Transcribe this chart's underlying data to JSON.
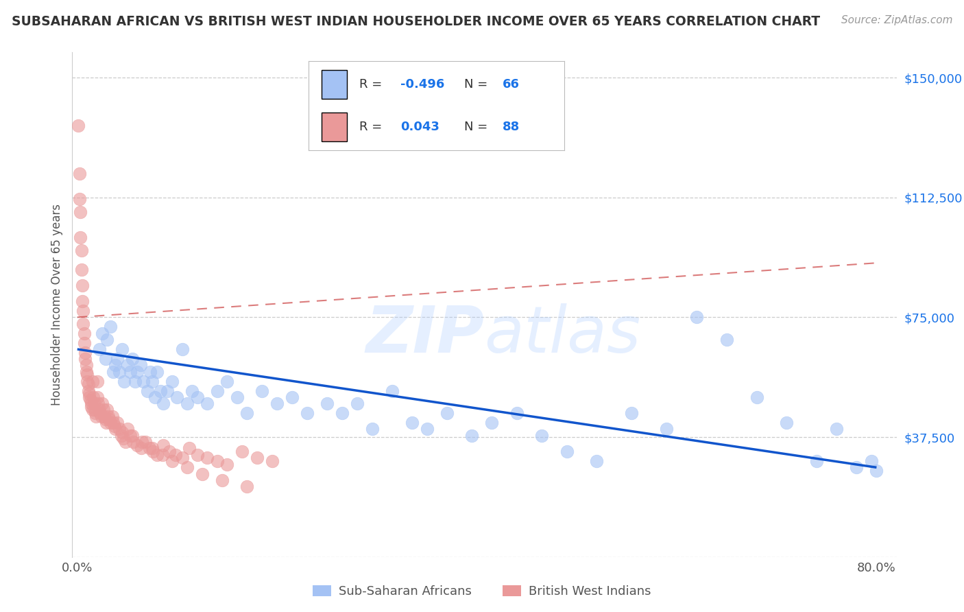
{
  "title": "SUBSAHARAN AFRICAN VS BRITISH WEST INDIAN HOUSEHOLDER INCOME OVER 65 YEARS CORRELATION CHART",
  "source": "Source: ZipAtlas.com",
  "ylabel": "Householder Income Over 65 years",
  "legend_label1": "Sub-Saharan Africans",
  "legend_label2": "British West Indians",
  "color_blue": "#a4c2f4",
  "color_pink": "#ea9999",
  "trendline_blue": "#1155cc",
  "trendline_pink": "#cc4444",
  "background": "#ffffff",
  "r1": "-0.496",
  "n1": "66",
  "r2": "0.043",
  "n2": "88",
  "blue_scatter_x": [
    0.022,
    0.025,
    0.028,
    0.03,
    0.033,
    0.036,
    0.038,
    0.04,
    0.042,
    0.045,
    0.047,
    0.05,
    0.053,
    0.055,
    0.058,
    0.06,
    0.063,
    0.066,
    0.07,
    0.073,
    0.075,
    0.078,
    0.08,
    0.083,
    0.086,
    0.09,
    0.095,
    0.1,
    0.105,
    0.11,
    0.115,
    0.12,
    0.13,
    0.14,
    0.15,
    0.16,
    0.17,
    0.185,
    0.2,
    0.215,
    0.23,
    0.25,
    0.265,
    0.28,
    0.295,
    0.315,
    0.335,
    0.35,
    0.37,
    0.395,
    0.415,
    0.44,
    0.465,
    0.49,
    0.52,
    0.555,
    0.59,
    0.62,
    0.65,
    0.68,
    0.71,
    0.74,
    0.76,
    0.78,
    0.795,
    0.8
  ],
  "blue_scatter_y": [
    65000,
    70000,
    62000,
    68000,
    72000,
    58000,
    60000,
    62000,
    58000,
    65000,
    55000,
    60000,
    58000,
    62000,
    55000,
    58000,
    60000,
    55000,
    52000,
    58000,
    55000,
    50000,
    58000,
    52000,
    48000,
    52000,
    55000,
    50000,
    65000,
    48000,
    52000,
    50000,
    48000,
    52000,
    55000,
    50000,
    45000,
    52000,
    48000,
    50000,
    45000,
    48000,
    45000,
    48000,
    40000,
    52000,
    42000,
    40000,
    45000,
    38000,
    42000,
    45000,
    38000,
    33000,
    30000,
    45000,
    40000,
    75000,
    68000,
    50000,
    42000,
    30000,
    40000,
    28000,
    30000,
    27000
  ],
  "pink_scatter_x": [
    0.001,
    0.002,
    0.002,
    0.003,
    0.003,
    0.004,
    0.004,
    0.005,
    0.005,
    0.006,
    0.006,
    0.007,
    0.007,
    0.008,
    0.008,
    0.009,
    0.009,
    0.01,
    0.01,
    0.011,
    0.011,
    0.012,
    0.012,
    0.013,
    0.014,
    0.014,
    0.015,
    0.015,
    0.016,
    0.017,
    0.017,
    0.018,
    0.019,
    0.02,
    0.02,
    0.021,
    0.022,
    0.023,
    0.024,
    0.025,
    0.026,
    0.027,
    0.028,
    0.029,
    0.03,
    0.031,
    0.032,
    0.033,
    0.035,
    0.036,
    0.037,
    0.038,
    0.04,
    0.042,
    0.044,
    0.046,
    0.048,
    0.05,
    0.053,
    0.056,
    0.06,
    0.064,
    0.068,
    0.072,
    0.076,
    0.08,
    0.086,
    0.092,
    0.098,
    0.105,
    0.112,
    0.12,
    0.13,
    0.14,
    0.15,
    0.165,
    0.18,
    0.195,
    0.045,
    0.055,
    0.065,
    0.075,
    0.085,
    0.095,
    0.11,
    0.125,
    0.145,
    0.17
  ],
  "pink_scatter_y": [
    135000,
    120000,
    112000,
    108000,
    100000,
    96000,
    90000,
    85000,
    80000,
    77000,
    73000,
    70000,
    67000,
    64000,
    62000,
    60000,
    58000,
    57000,
    55000,
    54000,
    52000,
    51000,
    50000,
    49000,
    48000,
    47000,
    46000,
    55000,
    50000,
    48000,
    46000,
    45000,
    44000,
    55000,
    50000,
    48000,
    46000,
    45000,
    44000,
    48000,
    46000,
    44000,
    43000,
    42000,
    46000,
    44000,
    43000,
    42000,
    44000,
    42000,
    41000,
    40000,
    42000,
    40000,
    38000,
    37000,
    36000,
    40000,
    38000,
    36000,
    35000,
    34000,
    36000,
    34000,
    33000,
    32000,
    35000,
    33000,
    32000,
    31000,
    34000,
    32000,
    31000,
    30000,
    29000,
    33000,
    31000,
    30000,
    39000,
    38000,
    36000,
    34000,
    32000,
    30000,
    28000,
    26000,
    24000,
    22000
  ],
  "blue_trend_x0": 0.0,
  "blue_trend_x1": 0.8,
  "blue_trend_y0": 65000,
  "blue_trend_y1": 28000,
  "pink_trend_x0": 0.0,
  "pink_trend_x1": 0.8,
  "pink_trend_y0": 75000,
  "pink_trend_y1": 92000,
  "xlim_min": -0.005,
  "xlim_max": 0.82,
  "ylim_min": 0,
  "ylim_max": 158000,
  "y_ticks": [
    0,
    37500,
    75000,
    112500,
    150000
  ],
  "y_tick_labels": [
    "",
    "$37,500",
    "$75,000",
    "$112,500",
    "$150,000"
  ]
}
